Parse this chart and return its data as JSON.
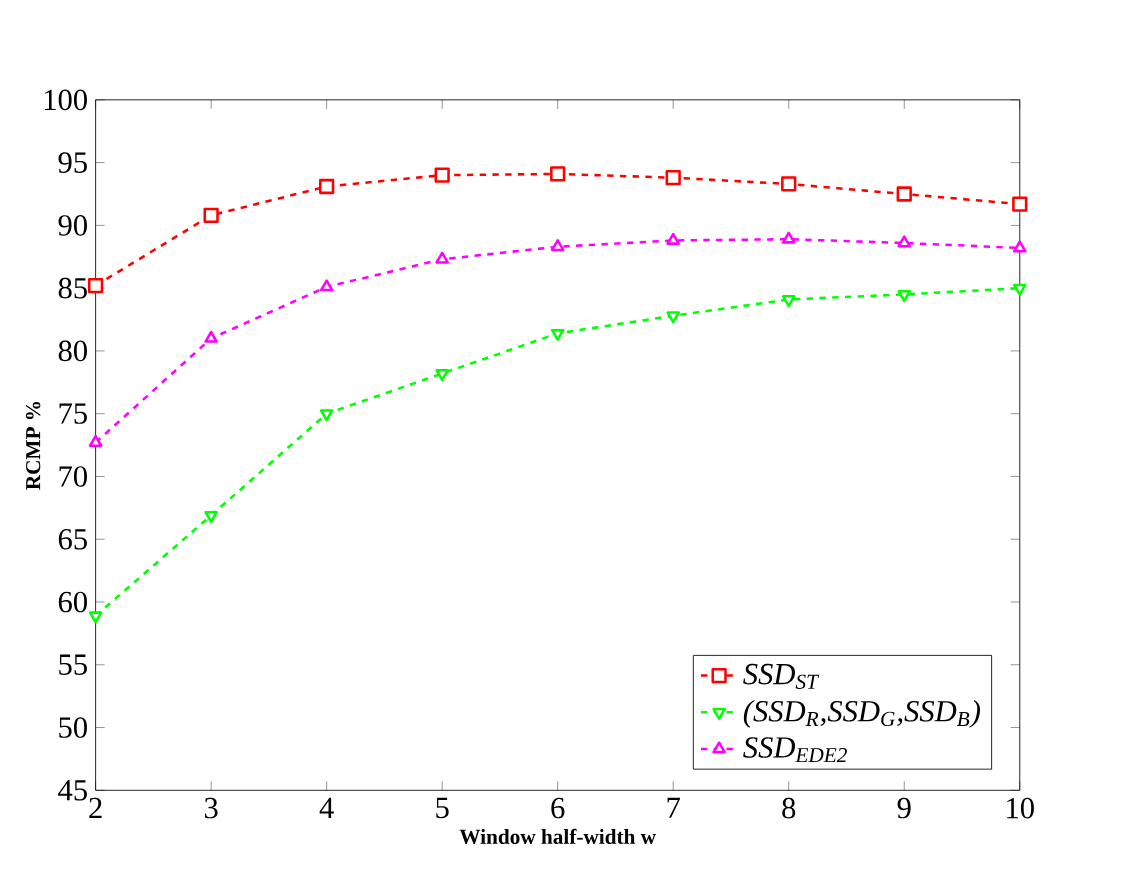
{
  "chart_data": {
    "type": "line",
    "xlabel": "Window half-width w",
    "ylabel": "RCMP %",
    "x": [
      2,
      3,
      4,
      5,
      6,
      7,
      8,
      9,
      10
    ],
    "series": [
      {
        "name": "SSD$_{ST}$",
        "color": "#ff0000",
        "marker": "square",
        "values": [
          85.2,
          90.8,
          93.1,
          94.0,
          94.1,
          93.8,
          93.3,
          92.5,
          91.7
        ]
      },
      {
        "name": "(SSD$_{R}$,SSD$_{G}$,SSD$_{B}$)",
        "color": "#00ff00",
        "marker": "triangle-down",
        "values": [
          58.9,
          66.9,
          75.0,
          78.2,
          81.4,
          82.8,
          84.1,
          84.5,
          85.0
        ]
      },
      {
        "name": "SSD$_{EDE2}$",
        "color": "#ff00ff",
        "marker": "triangle",
        "values": [
          72.7,
          81.0,
          85.1,
          87.3,
          88.3,
          88.8,
          88.9,
          88.6,
          88.2
        ]
      }
    ],
    "xlim": [
      2,
      10
    ],
    "xticks": [
      2,
      3,
      4,
      5,
      6,
      7,
      8,
      9,
      10
    ],
    "ylim": [
      45,
      100
    ],
    "yticks": [
      45,
      50,
      55,
      60,
      65,
      70,
      75,
      80,
      85,
      90,
      95,
      100
    ],
    "line_style": "dashed",
    "legend": "bottom right",
    "grid": false
  }
}
